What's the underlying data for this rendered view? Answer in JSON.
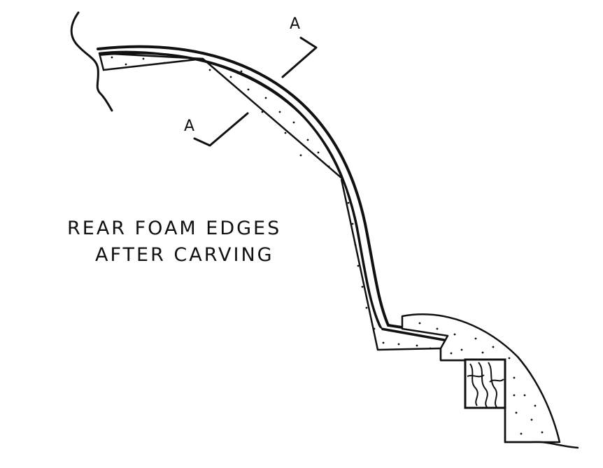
{
  "caption": {
    "line1": "REAR FOAM EDGES",
    "line2": "AFTER CARVING"
  },
  "section_markers": [
    {
      "letter": "A"
    },
    {
      "letter": "A"
    }
  ],
  "colors": {
    "ink": "#111111",
    "paper": "#ffffff"
  }
}
